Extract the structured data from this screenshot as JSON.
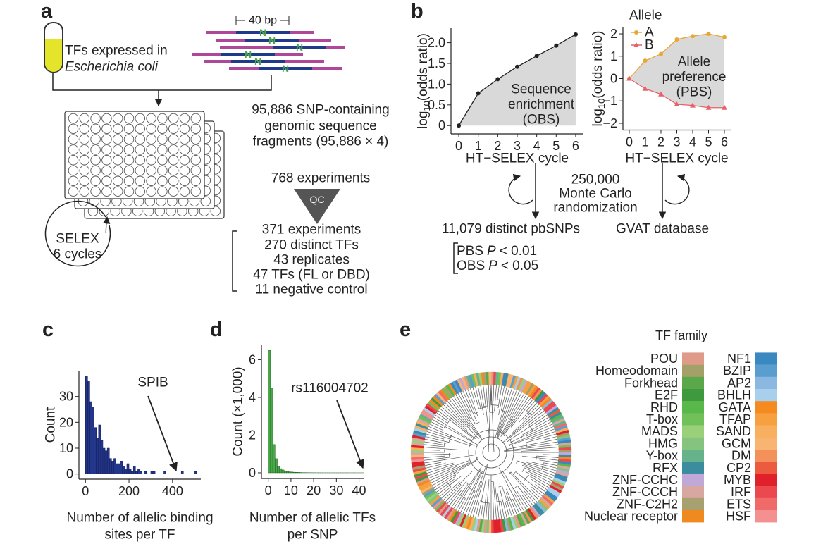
{
  "panel_letters": [
    "a",
    "b",
    "c",
    "d",
    "e"
  ],
  "panel_a": {
    "tube_label": [
      "TFs expressed in",
      "Escherichia coli"
    ],
    "fragment_length": "40 bp",
    "snp": "N",
    "fragments": [
      "95,886 SNP-containing",
      "genomic sequence",
      "fragments (95,886 × 4)"
    ],
    "experiments": "768 experiments",
    "qc": "QC",
    "qc_results": [
      "371 experiments",
      "270 distinct TFs",
      "43 replicates",
      "47 TFs (FL or DBD)",
      "11 negative control"
    ],
    "selex": [
      "SELEX",
      "6 cycles"
    ]
  },
  "panel_b": {
    "randomization": [
      "250,000",
      "Monte Carlo",
      "randomization"
    ],
    "pbsnps": "11,079 distinct pbSNPs",
    "database": "GVAT database",
    "thresholds": [
      [
        "PBS",
        "P",
        "< 0.01"
      ],
      [
        "OBS",
        "P",
        "< 0.05"
      ]
    ]
  },
  "chart_data": [
    {
      "type": "line",
      "x": [
        0,
        1,
        2,
        3,
        4,
        5,
        6
      ],
      "values": [
        0,
        0.78,
        1.12,
        1.42,
        1.68,
        1.93,
        2.2
      ],
      "color": "#222222",
      "area_color": "#d9d9d9",
      "xlim": [
        -0.4,
        6.4
      ],
      "ylim": [
        -0.2,
        2.35
      ],
      "xticks": [
        0,
        1,
        2,
        3,
        4,
        5,
        6
      ],
      "yticks": [
        0,
        0.5,
        {
          "value": 1,
          "label": "1.0"
        },
        1.5,
        {
          "value": 2,
          "label": "2.0"
        }
      ],
      "ylabel": [
        "log",
        "10",
        "(odds ratio)"
      ],
      "xlabel": "HT−SELEX cycle",
      "annotation": [
        "Sequence",
        "enrichment",
        "(OBS)"
      ]
    },
    {
      "type": "line",
      "x": [
        0,
        1,
        2,
        3,
        4,
        5,
        6
      ],
      "series": [
        {
          "name": "A",
          "color": "#e8a735",
          "marker": "circle",
          "values": [
            0,
            0.8,
            1.1,
            1.75,
            1.9,
            2.0,
            1.85
          ]
        },
        {
          "name": "B",
          "color": "#e8606a",
          "marker": "triangle",
          "values": [
            0,
            -0.45,
            -0.7,
            -1.15,
            -1.2,
            -1.3,
            -1.3
          ]
        }
      ],
      "legend_title": "Allele",
      "legend": "upper left",
      "area_color": "#d9d9d9",
      "xlim": [
        -0.4,
        6.4
      ],
      "ylim": [
        -2.3,
        2.3
      ],
      "xticks": [
        0,
        1,
        2,
        3,
        4,
        5,
        6
      ],
      "yticks": [
        {
          "value": -2,
          "label": "−2"
        },
        {
          "value": -1,
          "label": "−1"
        },
        0,
        1,
        2
      ],
      "ylabel": [
        "log",
        "10",
        "(odds ratio)"
      ],
      "xlabel": "HT−SELEX cycle",
      "annotation": [
        "Allele",
        "preference",
        "(PBS)"
      ]
    },
    {
      "type": "histogram",
      "bins": [
        0,
        10,
        20,
        30,
        40,
        50,
        60,
        70,
        80,
        90,
        100,
        110,
        120,
        130,
        140,
        150,
        160,
        170,
        180,
        190,
        200,
        210,
        220,
        230,
        240,
        250,
        260,
        270,
        280,
        290,
        300,
        310,
        320,
        330,
        340,
        350,
        360,
        370,
        380,
        390,
        400,
        410,
        420,
        430,
        440,
        450,
        460,
        470,
        480,
        490,
        500,
        510,
        520
      ],
      "values": [
        38,
        36,
        28,
        26,
        18,
        14,
        19,
        13,
        10,
        9,
        10,
        6,
        5,
        6,
        4,
        4,
        5,
        3,
        2,
        4,
        2,
        1,
        3,
        1,
        2,
        1,
        0,
        1,
        0,
        0,
        1,
        1,
        0,
        0,
        0,
        0,
        1,
        0,
        0,
        0,
        0,
        0,
        0,
        0,
        1,
        0,
        0,
        0,
        0,
        0,
        1,
        0
      ],
      "color": "#24368a",
      "edge_color": "#0f1a55",
      "xlim": [
        -30,
        530
      ],
      "ylim": [
        -2,
        40
      ],
      "xticks": [
        0,
        200,
        400
      ],
      "yticks": [
        0,
        10,
        20,
        30
      ],
      "ylabel": "Count",
      "xlabel": [
        "Number of allelic binding",
        "sites per TF"
      ],
      "annotation": "SPIB"
    },
    {
      "type": "histogram",
      "bins": [
        0,
        1,
        2,
        3,
        4,
        5,
        6,
        7,
        8,
        9,
        10,
        11,
        12,
        13,
        14,
        15,
        16,
        17,
        18,
        19,
        20,
        21,
        22,
        23,
        24,
        25,
        26,
        27,
        28,
        29,
        30,
        31,
        32,
        33,
        34,
        35,
        36,
        37,
        38,
        39,
        40,
        41,
        42
      ],
      "values": [
        6.5,
        4.5,
        1.5,
        0.75,
        0.35,
        0.22,
        0.15,
        0.1,
        0.07,
        0.05,
        0.04,
        0.03,
        0.025,
        0.02,
        0.015,
        0.01,
        0.01,
        0.008,
        0.006,
        0.005,
        0.004,
        0.003,
        0.003,
        0.002,
        0.002,
        0.001,
        0.001,
        0.001,
        0.001,
        0.001,
        0.001,
        0.001,
        0.001,
        0.001,
        0.001,
        0.001,
        0.001,
        0.001,
        0.001,
        0.001,
        0.001,
        0.001
      ],
      "color": "#4aa84a",
      "edge_color": "#1f5f1f",
      "xlim": [
        -3,
        42
      ],
      "ylim": [
        -0.3,
        6.8
      ],
      "xticks": [
        0,
        10,
        20,
        30,
        40
      ],
      "yticks": [
        0,
        2,
        4,
        6
      ],
      "ylabel": "Count (×1,000)",
      "xlabel": [
        "Number of allelic TFs",
        "per SNP"
      ],
      "annotation": "rs116004702"
    }
  ],
  "panel_e": {
    "legend_title": "TF family",
    "families": [
      {
        "name": "POU",
        "color": "#e09a8a"
      },
      {
        "name": "Homeodomain",
        "color": "#a4a06a"
      },
      {
        "name": "Forkhead",
        "color": "#5aa84a"
      },
      {
        "name": "E2F",
        "color": "#3f9a3f"
      },
      {
        "name": "RHD",
        "color": "#58b84a"
      },
      {
        "name": "T-box",
        "color": "#72c05a"
      },
      {
        "name": "MADS",
        "color": "#9ad07a"
      },
      {
        "name": "HMG",
        "color": "#84c47e"
      },
      {
        "name": "Y-box",
        "color": "#66b28a"
      },
      {
        "name": "RFX",
        "color": "#3c8ca0"
      },
      {
        "name": "ZNF-CCHC",
        "color": "#c0a8d8"
      },
      {
        "name": "ZNF-CCCH",
        "color": "#d8a8a0"
      },
      {
        "name": "ZNF-C2H2",
        "color": "#a8a070"
      },
      {
        "name": "Nuclear receptor",
        "color": "#f08a20"
      },
      {
        "name": "NF1",
        "color": "#3a88c0"
      },
      {
        "name": "BZIP",
        "color": "#5a9ed0"
      },
      {
        "name": "AP2",
        "color": "#8ab8e0"
      },
      {
        "name": "BHLH",
        "color": "#a8d0ec"
      },
      {
        "name": "GATA",
        "color": "#f48a20"
      },
      {
        "name": "TFAP",
        "color": "#f6a040"
      },
      {
        "name": "SAND",
        "color": "#f8b060"
      },
      {
        "name": "GCM",
        "color": "#f8b470"
      },
      {
        "name": "DM",
        "color": "#f4905a"
      },
      {
        "name": "CP2",
        "color": "#ec5a40"
      },
      {
        "name": "MYB",
        "color": "#e0202a"
      },
      {
        "name": "IRF",
        "color": "#ec4850"
      },
      {
        "name": "ETS",
        "color": "#f06a6a"
      },
      {
        "name": "HSF",
        "color": "#f49090"
      }
    ]
  }
}
